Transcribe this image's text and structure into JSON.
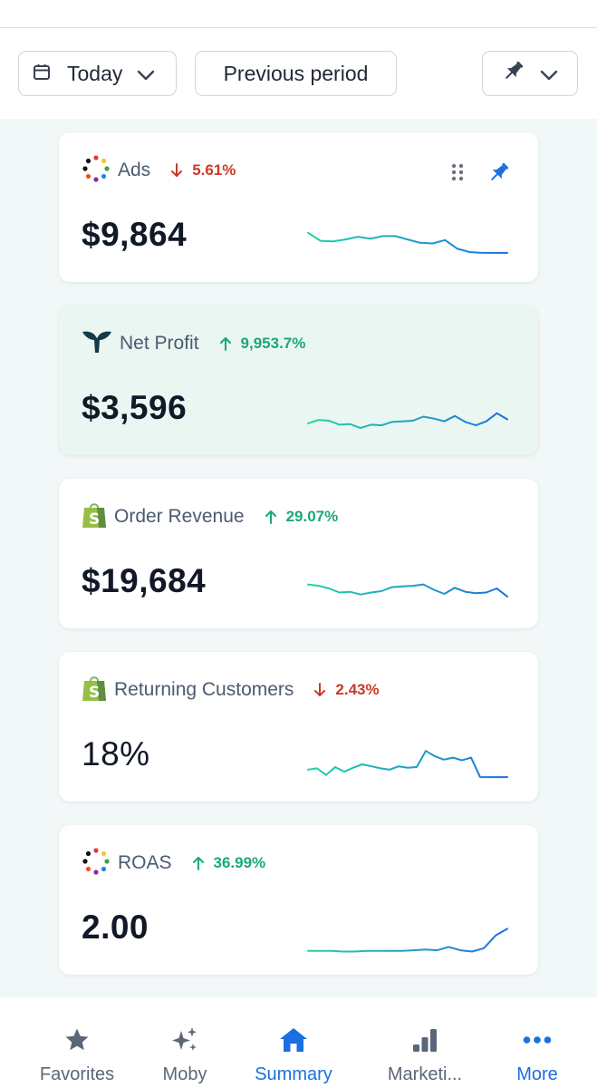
{
  "filters": {
    "date_label": "Today",
    "compare_label": "Previous period",
    "calendar_icon": "calendar-icon",
    "chevron_icon": "chevron-down-icon",
    "pin_icon": "pin-icon"
  },
  "colors": {
    "up": "#1aa77a",
    "down": "#c93a2a",
    "active": "#1b6fe0",
    "highlight_card": "#eaf6f1",
    "spark_start": "#22d3a6",
    "spark_end": "#1d6fe0"
  },
  "cards": [
    {
      "title": "Ads",
      "icon": "multicolor-dots-icon",
      "trend_direction": "down",
      "trend_value": "5.61%",
      "value": "$9,864",
      "pinned": true,
      "sparkline": [
        68,
        56,
        55,
        58,
        62,
        59,
        63,
        63,
        58,
        53,
        52,
        57,
        44,
        39,
        38,
        38,
        38
      ]
    },
    {
      "title": "Net Profit",
      "icon": "whale-tail-icon",
      "trend_direction": "up",
      "trend_value": "9,953.7%",
      "value": "$3,596",
      "highlighted": true,
      "sparkline": [
        42,
        47,
        46,
        40,
        41,
        35,
        40,
        39,
        44,
        45,
        46,
        52,
        49,
        45,
        53,
        44,
        39,
        45,
        57,
        48
      ]
    },
    {
      "title": "Order Revenue",
      "icon": "shopify-bag-icon",
      "trend_direction": "up",
      "trend_value": "29.07%",
      "value": "$19,684",
      "sparkline": [
        60,
        58,
        54,
        48,
        49,
        45,
        48,
        50,
        56,
        57,
        58,
        60,
        52,
        46,
        55,
        49,
        47,
        48,
        54,
        42
      ]
    },
    {
      "title": "Returning Customers",
      "icon": "shopify-bag-icon",
      "trend_direction": "down",
      "trend_value": "2.43%",
      "value": "18%",
      "sparkline": [
        42,
        44,
        34,
        46,
        39,
        45,
        50,
        47,
        44,
        42,
        47,
        45,
        46,
        70,
        62,
        57,
        60,
        56,
        60,
        31,
        31,
        31,
        31
      ]
    },
    {
      "title": "ROAS",
      "icon": "multicolor-dots-icon",
      "trend_direction": "up",
      "trend_value": "36.99%",
      "value": "2.00",
      "sparkline": [
        30,
        30,
        30,
        29,
        29,
        30,
        30,
        30,
        30,
        31,
        32,
        31,
        36,
        31,
        29,
        34,
        53,
        63
      ]
    }
  ],
  "tabs": [
    {
      "label": "Favorites",
      "icon": "star-icon"
    },
    {
      "label": "Moby",
      "icon": "sparkles-icon"
    },
    {
      "label": "Summary",
      "icon": "home-icon",
      "active": true
    },
    {
      "label": "Marketi...",
      "icon": "bar-chart-icon"
    },
    {
      "label": "More",
      "icon": "more-dots-icon",
      "active_color": true
    }
  ]
}
